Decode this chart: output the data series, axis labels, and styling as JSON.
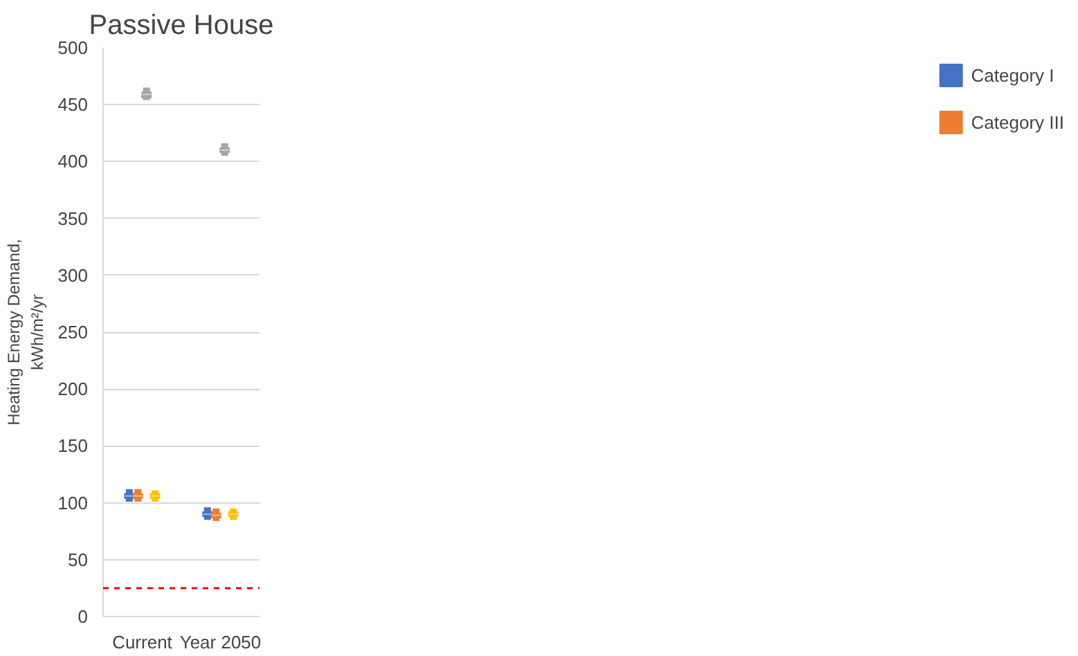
{
  "chart_data": {
    "type": "box",
    "title": "Passive House",
    "ylabel": "Heating Energy Demand,\nkWh/m²/yr",
    "categories": [
      "Current",
      "Year 2050"
    ],
    "ylim": [
      0,
      500
    ],
    "yticks": [
      0,
      50,
      100,
      150,
      200,
      250,
      300,
      350,
      400,
      450,
      500
    ],
    "grid": "y",
    "legend": "right",
    "series": [
      {
        "name": "Category I",
        "color": "#4472c4",
        "boxes": [
          {
            "low": 101,
            "q1": 104,
            "median": 106,
            "q3": 108,
            "high": 112
          },
          {
            "low": 85,
            "q1": 88,
            "median": 90,
            "q3": 92,
            "high": 96
          }
        ]
      },
      {
        "name": "Category III",
        "color": "#ed7d31",
        "boxes": [
          {
            "low": 101,
            "q1": 104,
            "median": 106,
            "q3": 108,
            "high": 112
          },
          {
            "low": 84,
            "q1": 87,
            "median": 89,
            "q3": 91,
            "high": 95
          }
        ]
      },
      {
        "color": "#a5a5a5",
        "boxes": [
          {
            "low": 454,
            "q1": 456,
            "median": 459,
            "q3": 461,
            "high": 465
          },
          {
            "low": 405,
            "q1": 408,
            "median": 410,
            "q3": 412,
            "high": 416
          }
        ]
      },
      {
        "color": "#ffc000",
        "boxes": [
          {
            "low": 101,
            "q1": 104,
            "median": 106,
            "q3": 108,
            "high": 111
          },
          {
            "low": 85,
            "q1": 88,
            "median": 90,
            "q3": 92,
            "high": 95
          }
        ]
      }
    ],
    "ref_lines": [
      {
        "axis": "y",
        "value": 25,
        "color": "#ff0000",
        "line_style": "dashed"
      }
    ]
  }
}
